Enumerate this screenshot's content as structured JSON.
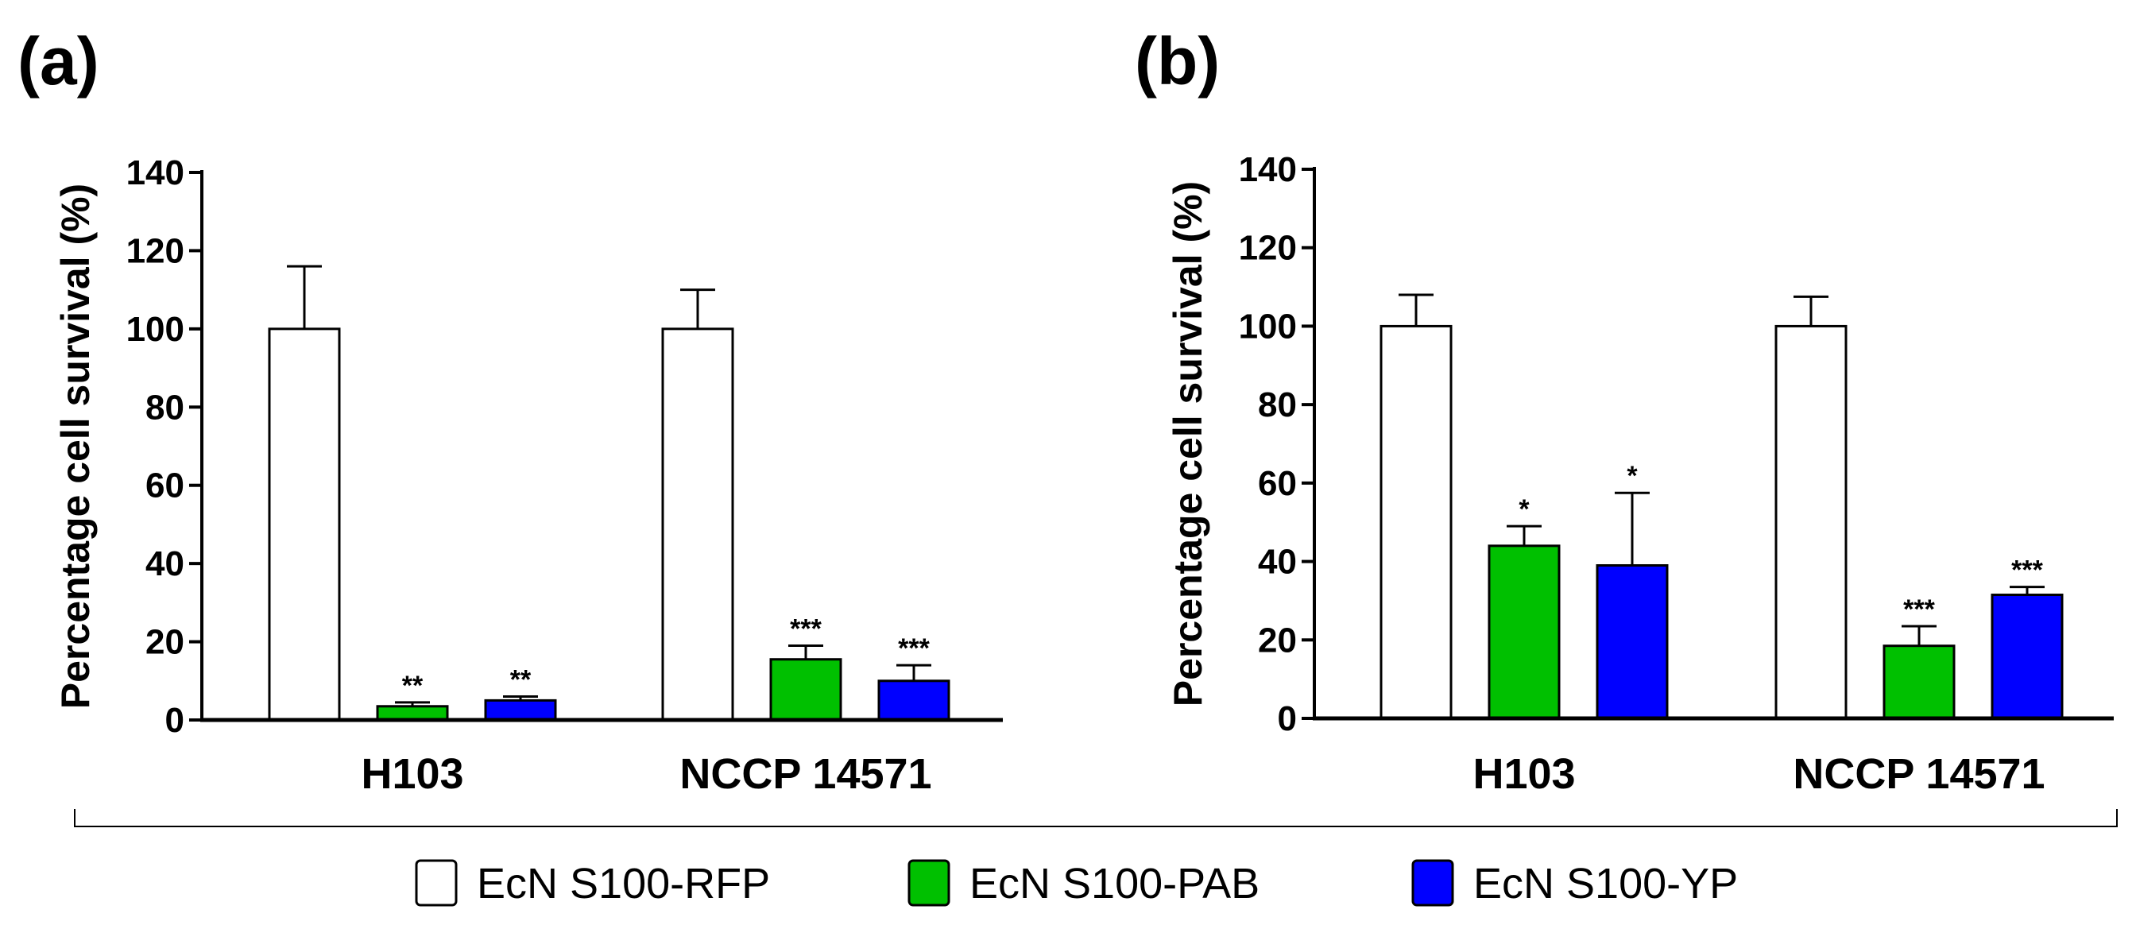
{
  "chart_data": [
    {
      "type": "bar",
      "panel": "(a)",
      "ylabel": "Percentage cell survival (%)",
      "xlabel": "",
      "ylim": [
        0,
        140
      ],
      "yticks": [
        0,
        20,
        40,
        60,
        80,
        100,
        120,
        140
      ],
      "categories": [
        "H103",
        "NCCP 14571"
      ],
      "series": [
        {
          "name": "EcN S100-RFP",
          "color": "#ffffff",
          "values": [
            100,
            100
          ],
          "errors": [
            16,
            10
          ],
          "significance": [
            "",
            ""
          ]
        },
        {
          "name": "EcN S100-PAB",
          "color": "#00c000",
          "values": [
            3.5,
            15.5
          ],
          "errors": [
            1,
            3.5
          ],
          "significance": [
            "**",
            "***"
          ]
        },
        {
          "name": "EcN S100-YP",
          "color": "#0000ff",
          "values": [
            5,
            10
          ],
          "errors": [
            1,
            4
          ],
          "significance": [
            "**",
            "***"
          ]
        }
      ]
    },
    {
      "type": "bar",
      "panel": "(b)",
      "ylabel": "Percentage cell survival (%)",
      "xlabel": "",
      "ylim": [
        0,
        140
      ],
      "yticks": [
        0,
        20,
        40,
        60,
        80,
        100,
        120,
        140
      ],
      "categories": [
        "H103",
        "NCCP 14571"
      ],
      "series": [
        {
          "name": "EcN S100-RFP",
          "color": "#ffffff",
          "values": [
            100,
            100
          ],
          "errors": [
            8,
            7.5
          ],
          "significance": [
            "",
            ""
          ]
        },
        {
          "name": "EcN S100-PAB",
          "color": "#00c000",
          "values": [
            44,
            18.5
          ],
          "errors": [
            5,
            5
          ],
          "significance": [
            "*",
            "***"
          ]
        },
        {
          "name": "EcN S100-YP",
          "color": "#0000ff",
          "values": [
            39,
            31.5
          ],
          "errors": [
            18.5,
            2
          ],
          "significance": [
            "*",
            "***"
          ]
        }
      ]
    }
  ],
  "legend": [
    {
      "label": "EcN S100-RFP",
      "color": "#ffffff"
    },
    {
      "label": "EcN S100-PAB",
      "color": "#00c000"
    },
    {
      "label": "EcN S100-YP",
      "color": "#0000ff"
    }
  ]
}
